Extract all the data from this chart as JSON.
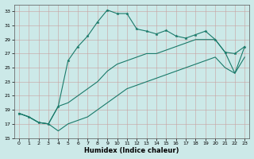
{
  "xlabel": "Humidex (Indice chaleur)",
  "bg_color": "#cce9e8",
  "grid_color_major": "#b0b0b0",
  "grid_color_minor": "#d0d0d0",
  "line_color": "#1a7a6a",
  "xlim": [
    -0.5,
    23.5
  ],
  "ylim": [
    15,
    34
  ],
  "yticks": [
    15,
    17,
    19,
    21,
    23,
    25,
    27,
    29,
    31,
    33
  ],
  "xticks": [
    0,
    1,
    2,
    3,
    4,
    5,
    6,
    7,
    8,
    9,
    10,
    11,
    12,
    13,
    14,
    15,
    16,
    17,
    18,
    19,
    20,
    21,
    22,
    23
  ],
  "series1_x": [
    0,
    1,
    2,
    3,
    4,
    5,
    6,
    7,
    8,
    9,
    10,
    11,
    12,
    13,
    14,
    15,
    16,
    17,
    18,
    19,
    20,
    21,
    22,
    23
  ],
  "series1_y": [
    18.5,
    18.0,
    17.2,
    17.0,
    19.5,
    26.0,
    28.0,
    29.5,
    31.5,
    33.2,
    32.7,
    32.7,
    30.5,
    30.2,
    29.8,
    30.3,
    29.5,
    29.2,
    29.7,
    30.2,
    29.0,
    27.2,
    27.0,
    28.0
  ],
  "series2_x": [
    0,
    1,
    2,
    3,
    4,
    5,
    6,
    7,
    8,
    9,
    10,
    11,
    12,
    13,
    14,
    15,
    16,
    17,
    18,
    19,
    20,
    21,
    22,
    23
  ],
  "series2_y": [
    18.5,
    18.0,
    17.2,
    17.0,
    19.5,
    20.0,
    21.0,
    22.0,
    23.0,
    24.5,
    25.5,
    26.0,
    26.5,
    27.0,
    27.0,
    27.5,
    28.0,
    28.5,
    29.0,
    29.0,
    29.0,
    27.2,
    24.2,
    28.0
  ],
  "series3_x": [
    0,
    1,
    2,
    3,
    4,
    5,
    6,
    7,
    8,
    9,
    10,
    11,
    12,
    13,
    14,
    15,
    16,
    17,
    18,
    19,
    20,
    21,
    22,
    23
  ],
  "series3_y": [
    18.5,
    18.0,
    17.2,
    17.0,
    16.0,
    17.0,
    17.5,
    18.0,
    19.0,
    20.0,
    21.0,
    22.0,
    22.5,
    23.0,
    23.5,
    24.0,
    24.5,
    25.0,
    25.5,
    26.0,
    26.5,
    25.0,
    24.2,
    26.5
  ]
}
